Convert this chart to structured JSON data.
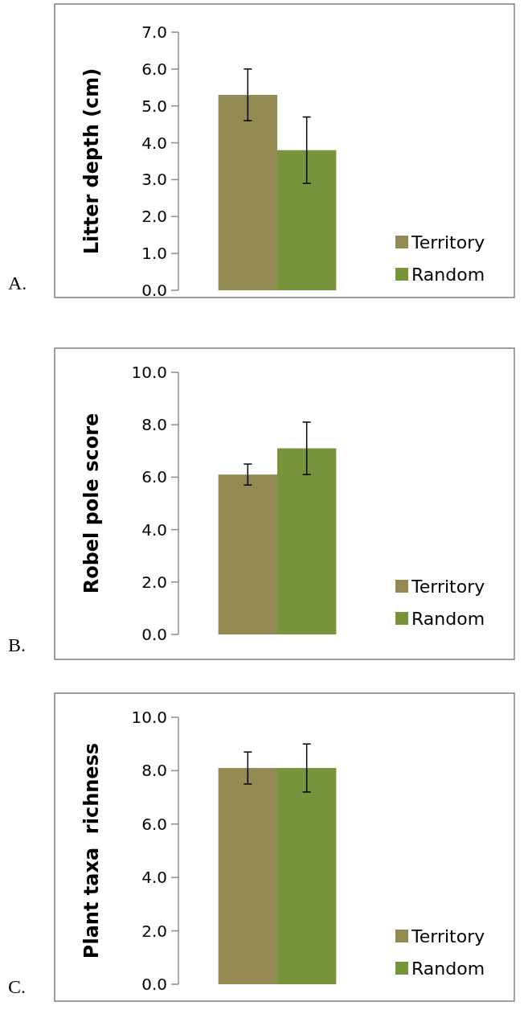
{
  "chart_data": [
    {
      "type": "bar",
      "ylabel": "Litter depth (cm)",
      "categories": [
        null
      ],
      "ylim": [
        0,
        7
      ],
      "yticks": [
        {
          "value": 0,
          "label": "0.0"
        },
        {
          "value": 1,
          "label": "1.0"
        },
        {
          "value": 2,
          "label": "2.0"
        },
        {
          "value": 3,
          "label": "3.0"
        },
        {
          "value": 4,
          "label": "4.0"
        },
        {
          "value": 5,
          "label": "5.0"
        },
        {
          "value": 6,
          "label": "6.0"
        },
        {
          "value": 7,
          "label": "7.0"
        }
      ],
      "legend": "bottom right",
      "grid": false,
      "annotations": [
        "A."
      ],
      "series": [
        {
          "name": "Territory",
          "color": "#938953",
          "values": [
            5.3
          ],
          "errors": [
            0.7
          ]
        },
        {
          "name": "Random",
          "color": "#77933c",
          "values": [
            3.8
          ],
          "errors": [
            0.9
          ]
        }
      ]
    },
    {
      "type": "bar",
      "ylabel": "Robel pole score",
      "categories": [
        null
      ],
      "ylim": [
        0,
        10
      ],
      "yticks": [
        {
          "value": 0,
          "label": "0.0"
        },
        {
          "value": 2,
          "label": "2.0"
        },
        {
          "value": 4,
          "label": "4.0"
        },
        {
          "value": 6,
          "label": "6.0"
        },
        {
          "value": 8,
          "label": "8.0"
        },
        {
          "value": 10,
          "label": "10.0"
        }
      ],
      "legend": "bottom right",
      "grid": false,
      "annotations": [
        "B."
      ],
      "series": [
        {
          "name": "Territory",
          "color": "#938953",
          "values": [
            6.1
          ],
          "errors": [
            0.4
          ]
        },
        {
          "name": "Random",
          "color": "#77933c",
          "values": [
            7.1
          ],
          "errors": [
            1.0
          ]
        }
      ]
    },
    {
      "type": "bar",
      "ylabel": "Plant taxa  richness",
      "categories": [
        null
      ],
      "ylim": [
        0,
        10
      ],
      "yticks": [
        {
          "value": 0,
          "label": "0.0"
        },
        {
          "value": 2,
          "label": "2.0"
        },
        {
          "value": 4,
          "label": "4.0"
        },
        {
          "value": 6,
          "label": "6.0"
        },
        {
          "value": 8,
          "label": "8.0"
        },
        {
          "value": 10,
          "label": "10.0"
        }
      ],
      "legend": "bottom right",
      "grid": false,
      "annotations": [
        "C."
      ],
      "series": [
        {
          "name": "Territory",
          "color": "#938953",
          "values": [
            8.1
          ],
          "errors": [
            0.6
          ]
        },
        {
          "name": "Random",
          "color": "#77933c",
          "values": [
            8.1
          ],
          "errors": [
            0.9
          ]
        }
      ]
    }
  ]
}
